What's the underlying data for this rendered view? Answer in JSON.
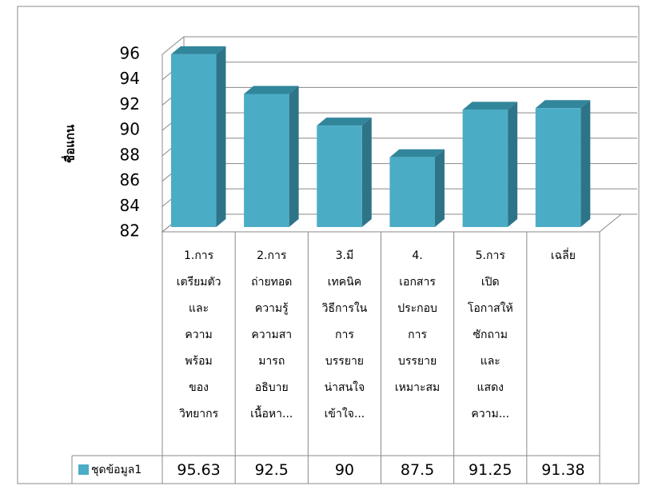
{
  "chart_data": {
    "type": "bar3d",
    "y_axis_label": "ชื่อแกน",
    "categories": [
      [
        "1.การ",
        "เตรียมตัว",
        "และ",
        "ความ",
        "พร้อม",
        "ของ",
        "วิทยากร"
      ],
      [
        "2.การ",
        "ถ่ายทอด",
        "ความรู้",
        "ความสา",
        "มารถ",
        "อธิบาย",
        "เนื้อหา..."
      ],
      [
        "3.มี",
        "เทคนิค",
        "วิธีการใน",
        "การ",
        "บรรยาย",
        "น่าสนใจ",
        "เข้าใจ..."
      ],
      [
        "4.",
        "เอกสาร",
        "ประกอบ",
        "การ",
        "บรรยาย",
        "เหมาะสม"
      ],
      [
        "5.การ",
        "เปิด",
        "โอกาสให้",
        "ซักถาม",
        "และ",
        "แสดง",
        "ความ..."
      ],
      [
        "เฉลี่ย"
      ]
    ],
    "series": [
      {
        "name": "ชุดข้อมูล1",
        "color": "#4bacc6",
        "values": [
          95.63,
          92.5,
          90,
          87.5,
          91.25,
          91.38
        ]
      }
    ],
    "ylim": [
      82,
      96
    ],
    "yticks": [
      82,
      84,
      86,
      88,
      90,
      92,
      94,
      96
    ],
    "grid": true
  }
}
